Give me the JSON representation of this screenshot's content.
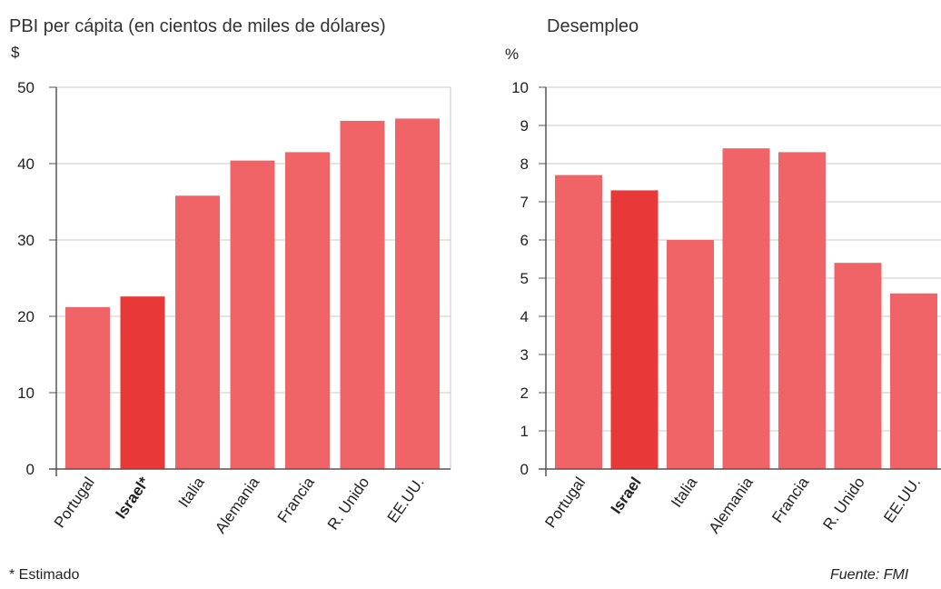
{
  "chart_data": [
    {
      "type": "bar",
      "title": "PBI per cápita (en cientos de miles de dólares)",
      "ylabel": "$",
      "categories": [
        "Portugal",
        "Israel*",
        "Italia",
        "Alemania",
        "Francia",
        "R. Unido",
        "EE.UU."
      ],
      "values": [
        21.2,
        22.6,
        35.8,
        40.4,
        41.5,
        45.6,
        45.9
      ],
      "highlight": "Israel*",
      "ylim": [
        0,
        50
      ],
      "yticks": [
        0,
        10,
        20,
        30,
        40,
        50
      ],
      "grid": true,
      "colors": {
        "bar": "#f06468",
        "highlight": "#e83838",
        "grid": "#c8c8c8",
        "axis": "#555555"
      }
    },
    {
      "type": "bar",
      "title": "Desempleo",
      "ylabel": "%",
      "categories": [
        "Portugal",
        "Israel",
        "Italia",
        "Alemania",
        "Francia",
        "R. Unido",
        "EE.UU."
      ],
      "values": [
        7.7,
        7.3,
        6.0,
        8.4,
        8.3,
        5.4,
        4.6
      ],
      "highlight": "Israel",
      "ylim": [
        0,
        10
      ],
      "yticks": [
        0,
        1,
        2,
        3,
        4,
        5,
        6,
        7,
        8,
        9,
        10
      ],
      "grid": true,
      "colors": {
        "bar": "#f06468",
        "highlight": "#e83838",
        "grid": "#c8c8c8",
        "axis": "#555555"
      }
    }
  ],
  "footnote": "* Estimado",
  "source": "Fuente: FMI"
}
